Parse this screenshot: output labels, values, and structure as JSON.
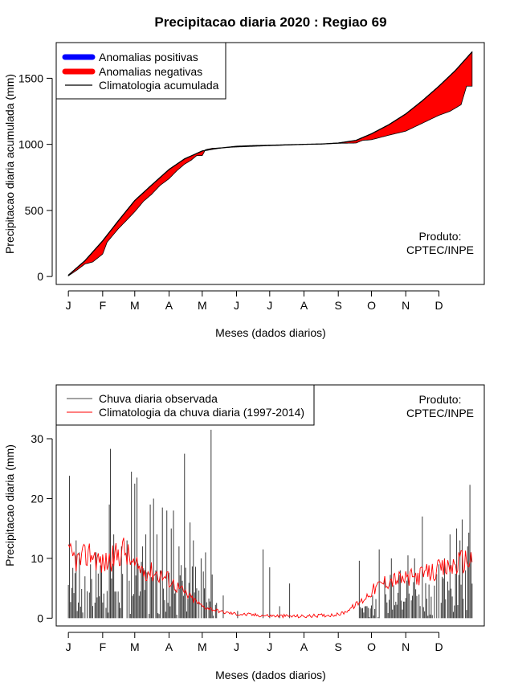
{
  "chart_data": [
    {
      "type": "area",
      "title": "Precipitacao diaria 2020 : Regiao 69",
      "xlabel": "Meses (dados diarios)",
      "ylabel": "Precipitacao diaria acumulada (mm)",
      "x_ticks": [
        "J",
        "F",
        "M",
        "A",
        "M",
        "J",
        "J",
        "A",
        "S",
        "O",
        "N",
        "D"
      ],
      "y_ticks": [
        0,
        500,
        1000,
        1500
      ],
      "ylim": [
        -60,
        1770
      ],
      "xlim_days": [
        -11,
        376
      ],
      "legend_position": "top-left",
      "legend": [
        {
          "label": "Anomalias positivas",
          "color": "#0000ff"
        },
        {
          "label": "Anomalias negativas",
          "color": "#ff0000"
        },
        {
          "label": "Climatologia acumulada",
          "color": "#000000"
        }
      ],
      "credit": [
        "Produto:",
        "CPTEC/INPE"
      ],
      "climatology_points": [
        [
          0,
          10
        ],
        [
          15,
          120
        ],
        [
          31,
          270
        ],
        [
          45,
          420
        ],
        [
          60,
          575
        ],
        [
          75,
          690
        ],
        [
          91,
          810
        ],
        [
          105,
          890
        ],
        [
          121,
          950
        ],
        [
          135,
          970
        ],
        [
          152,
          985
        ],
        [
          167,
          990
        ],
        [
          182,
          993
        ],
        [
          200,
          997
        ],
        [
          213,
          1000
        ],
        [
          230,
          1003
        ],
        [
          244,
          1010
        ],
        [
          260,
          1030
        ],
        [
          274,
          1080
        ],
        [
          290,
          1150
        ],
        [
          305,
          1230
        ],
        [
          320,
          1330
        ],
        [
          335,
          1440
        ],
        [
          350,
          1560
        ],
        [
          365,
          1700
        ]
      ],
      "observed_points": [
        [
          0,
          5
        ],
        [
          8,
          50
        ],
        [
          15,
          95
        ],
        [
          22,
          110
        ],
        [
          31,
          170
        ],
        [
          35,
          260
        ],
        [
          45,
          360
        ],
        [
          52,
          420
        ],
        [
          60,
          490
        ],
        [
          68,
          570
        ],
        [
          75,
          620
        ],
        [
          83,
          690
        ],
        [
          91,
          740
        ],
        [
          98,
          800
        ],
        [
          105,
          850
        ],
        [
          111,
          880
        ],
        [
          116,
          915
        ],
        [
          121,
          915
        ],
        [
          124,
          960
        ],
        [
          130,
          970
        ],
        [
          140,
          975
        ],
        [
          152,
          980
        ],
        [
          167,
          985
        ],
        [
          182,
          990
        ],
        [
          200,
          995
        ],
        [
          213,
          1000
        ],
        [
          230,
          1003
        ],
        [
          244,
          1008
        ],
        [
          260,
          1010
        ],
        [
          266,
          1030
        ],
        [
          274,
          1035
        ],
        [
          290,
          1070
        ],
        [
          305,
          1100
        ],
        [
          320,
          1160
        ],
        [
          335,
          1220
        ],
        [
          345,
          1250
        ],
        [
          355,
          1300
        ],
        [
          360,
          1440
        ],
        [
          365,
          1440
        ]
      ]
    },
    {
      "type": "bar",
      "xlabel": "Meses (dados diarios)",
      "ylabel": "Precipitacao diaria (mm)",
      "x_ticks": [
        "J",
        "F",
        "M",
        "A",
        "M",
        "J",
        "J",
        "A",
        "S",
        "O",
        "N",
        "D"
      ],
      "y_ticks": [
        0,
        10,
        20,
        30
      ],
      "ylim": [
        -1.3,
        39
      ],
      "xlim_days": [
        -11,
        376
      ],
      "legend_position": "top-left",
      "legend": [
        {
          "label": "Chuva diaria observada",
          "color": "#444444"
        },
        {
          "label": "Climatologia da chuva diaria (1997-2014)",
          "color": "#ff0000"
        }
      ],
      "credit": [
        "Produto:",
        "CPTEC/INPE"
      ],
      "observed_peaks": [
        [
          1,
          23.8
        ],
        [
          7,
          13
        ],
        [
          10,
          11
        ],
        [
          15,
          7
        ],
        [
          20,
          9
        ],
        [
          25,
          11
        ],
        [
          37,
          19
        ],
        [
          38,
          28.3
        ],
        [
          41,
          14
        ],
        [
          48,
          12
        ],
        [
          53,
          13
        ],
        [
          57,
          24.5
        ],
        [
          60,
          22.5
        ],
        [
          62,
          23.5
        ],
        [
          67,
          12
        ],
        [
          70,
          14
        ],
        [
          74,
          19
        ],
        [
          77,
          20
        ],
        [
          80,
          14
        ],
        [
          85,
          18.5
        ],
        [
          89,
          18
        ],
        [
          93,
          15
        ],
        [
          95,
          18
        ],
        [
          100,
          12
        ],
        [
          105,
          27.5
        ],
        [
          110,
          16
        ],
        [
          113,
          13
        ],
        [
          120,
          10
        ],
        [
          122,
          7.8
        ],
        [
          124,
          11
        ],
        [
          129,
          31.5
        ],
        [
          130,
          7.3
        ],
        [
          140,
          3.8
        ],
        [
          153,
          1.2
        ],
        [
          176,
          11.5
        ],
        [
          182,
          8.5
        ],
        [
          191,
          2
        ],
        [
          200,
          5.8
        ],
        [
          263,
          9.6
        ],
        [
          270,
          2
        ],
        [
          275,
          3.8
        ],
        [
          281,
          11.5
        ],
        [
          287,
          4
        ],
        [
          292,
          10
        ],
        [
          300,
          8
        ],
        [
          307,
          10.5
        ],
        [
          313,
          10
        ],
        [
          320,
          17
        ],
        [
          335,
          9
        ],
        [
          340,
          10
        ],
        [
          345,
          14
        ],
        [
          351,
          15
        ],
        [
          354,
          13
        ],
        [
          356,
          16.5
        ],
        [
          359,
          8
        ],
        [
          361,
          12
        ],
        [
          362,
          14.3
        ],
        [
          363,
          22.3
        ],
        [
          364,
          11
        ]
      ],
      "climatology_points": [
        [
          0,
          10.5
        ],
        [
          10,
          9.5
        ],
        [
          20,
          11
        ],
        [
          31,
          9
        ],
        [
          40,
          10
        ],
        [
          50,
          11.5
        ],
        [
          60,
          8.5
        ],
        [
          70,
          8
        ],
        [
          80,
          7.5
        ],
        [
          91,
          6.5
        ],
        [
          100,
          5
        ],
        [
          110,
          3.5
        ],
        [
          121,
          2
        ],
        [
          130,
          1.5
        ],
        [
          140,
          1
        ],
        [
          152,
          0.7
        ],
        [
          182,
          0.4
        ],
        [
          213,
          0.3
        ],
        [
          244,
          0.6
        ],
        [
          250,
          1
        ],
        [
          258,
          2
        ],
        [
          266,
          3
        ],
        [
          274,
          4.5
        ],
        [
          285,
          6
        ],
        [
          295,
          6.5
        ],
        [
          305,
          6.5
        ],
        [
          315,
          7
        ],
        [
          325,
          7.5
        ],
        [
          335,
          8
        ],
        [
          345,
          8.5
        ],
        [
          355,
          9.5
        ],
        [
          365,
          10
        ]
      ]
    }
  ]
}
